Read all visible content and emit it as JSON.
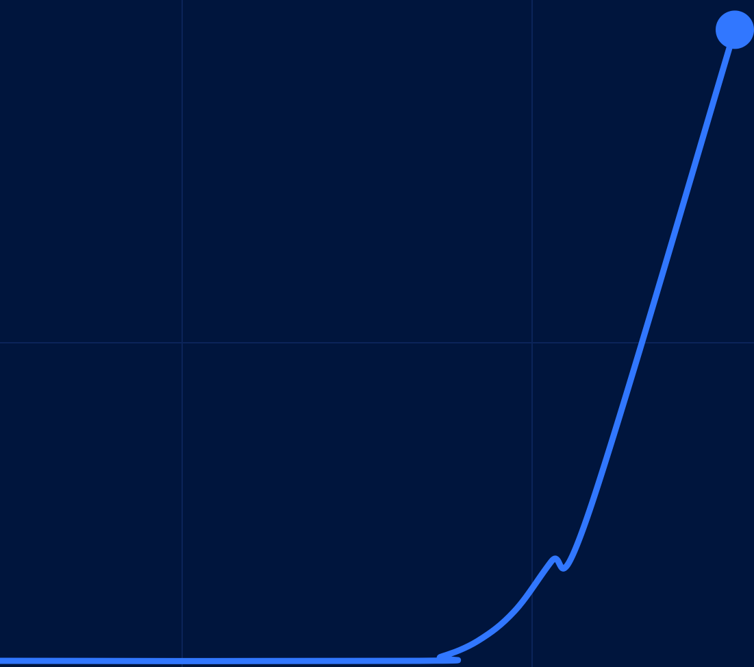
{
  "chart_data": {
    "type": "line",
    "title": "",
    "xlabel": "",
    "ylabel": "",
    "grid": true,
    "legend": "none",
    "colors": {
      "background": "#00153d",
      "grid": "#0b2459",
      "line": "#3177ff",
      "marker": "#3177ff"
    },
    "series": [
      {
        "x": [
          0,
          0.57,
          0.6,
          0.65,
          0.7,
          0.75,
          0.8,
          1.0
        ],
        "y": [
          0,
          0,
          0.006,
          0.03,
          0.075,
          0.15,
          0.22,
          0.955
        ]
      }
    ],
    "end_marker": true
  }
}
